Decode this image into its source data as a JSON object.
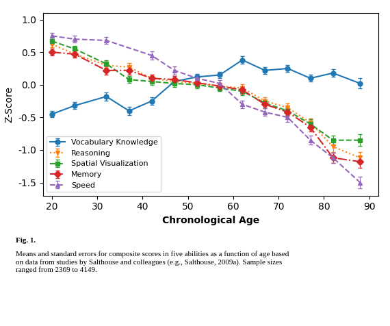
{
  "chart_data": {
    "type": "line",
    "x_label": "Chronological Age",
    "y_label": "Z-Score",
    "xlim": [
      18,
      92
    ],
    "ylim": [
      -1.7,
      1.1
    ],
    "xticks": [
      20,
      30,
      40,
      50,
      60,
      70,
      80,
      90
    ],
    "yticks": [
      -1.5,
      {
        "value": -1.0,
        "label": "-1.0"
      },
      -0.5,
      {
        "value": 0.0,
        "label": "0.0"
      },
      0.5,
      {
        "value": 1.0,
        "label": "1.0"
      }
    ],
    "legend": "lower left",
    "annotations": [
      {
        "text": "Fig. 1."
      },
      {
        "text": "Means and standard errors for composite scores in five abilities as a function of age based\non data from studies by Salthouse and colleagues (e.g., Salthouse, 2009a). Sample sizes\nranged from 2369 to 4149."
      }
    ],
    "series": [
      {
        "name": "Vocabulary Knowledge",
        "line_style": "solid",
        "marker": "circle",
        "x": [
          20,
          25,
          32,
          37,
          42,
          47,
          52,
          57,
          62,
          67,
          72,
          77,
          82,
          88
        ],
        "values": [
          -0.45,
          -0.32,
          -0.18,
          -0.4,
          -0.25,
          0.05,
          0.12,
          0.15,
          0.38,
          0.22,
          0.25,
          0.1,
          0.18,
          0.02
        ],
        "errors": [
          0.05,
          0.05,
          0.06,
          0.06,
          0.06,
          0.05,
          0.05,
          0.05,
          0.06,
          0.05,
          0.05,
          0.05,
          0.06,
          0.08
        ]
      },
      {
        "name": "Reasoning",
        "line_style": "dotted",
        "marker": "triangle_down",
        "x": [
          20,
          25,
          32,
          37,
          42,
          47,
          52,
          57,
          62,
          67,
          72,
          77,
          82,
          88
        ],
        "values": [
          0.62,
          0.47,
          0.3,
          0.27,
          0.1,
          0.05,
          0.02,
          -0.02,
          -0.05,
          -0.25,
          -0.35,
          -0.58,
          -0.95,
          -1.12
        ],
        "errors": [
          0.05,
          0.05,
          0.05,
          0.06,
          0.05,
          0.05,
          0.05,
          0.05,
          0.06,
          0.06,
          0.06,
          0.06,
          0.08,
          0.09
        ]
      },
      {
        "name": "Spatial Visualization",
        "line_style": "dashed",
        "marker": "square",
        "x": [
          20,
          25,
          32,
          37,
          42,
          47,
          52,
          57,
          62,
          67,
          72,
          77,
          82,
          88
        ],
        "values": [
          0.67,
          0.55,
          0.32,
          0.08,
          0.05,
          0.02,
          0.0,
          -0.05,
          -0.1,
          -0.28,
          -0.4,
          -0.6,
          -0.85,
          -0.85
        ],
        "errors": [
          0.05,
          0.05,
          0.06,
          0.05,
          0.05,
          0.05,
          0.05,
          0.05,
          0.06,
          0.06,
          0.06,
          0.07,
          0.07,
          0.09
        ]
      },
      {
        "name": "Memory",
        "line_style": "dashdot",
        "marker": "diamond",
        "x": [
          20,
          25,
          32,
          37,
          42,
          47,
          52,
          57,
          62,
          67,
          72,
          77,
          82,
          88
        ],
        "values": [
          0.5,
          0.47,
          0.22,
          0.22,
          0.1,
          0.08,
          0.03,
          -0.02,
          -0.08,
          -0.3,
          -0.42,
          -0.65,
          -1.12,
          -1.18
        ],
        "errors": [
          0.05,
          0.05,
          0.06,
          0.06,
          0.06,
          0.05,
          0.05,
          0.05,
          0.06,
          0.06,
          0.06,
          0.07,
          0.08,
          0.09
        ]
      },
      {
        "name": "Speed",
        "line_style": "dashed",
        "marker": "triangle_up",
        "x": [
          20,
          25,
          32,
          42,
          47,
          52,
          57,
          62,
          67,
          72,
          77,
          82,
          88
        ],
        "values": [
          0.75,
          0.7,
          0.68,
          0.45,
          0.22,
          0.1,
          0.02,
          -0.3,
          -0.42,
          -0.5,
          -0.85,
          -1.12,
          -1.5
        ],
        "errors": [
          0.05,
          0.05,
          0.05,
          0.06,
          0.06,
          0.05,
          0.05,
          0.06,
          0.06,
          0.07,
          0.07,
          0.08,
          0.09
        ]
      }
    ]
  }
}
